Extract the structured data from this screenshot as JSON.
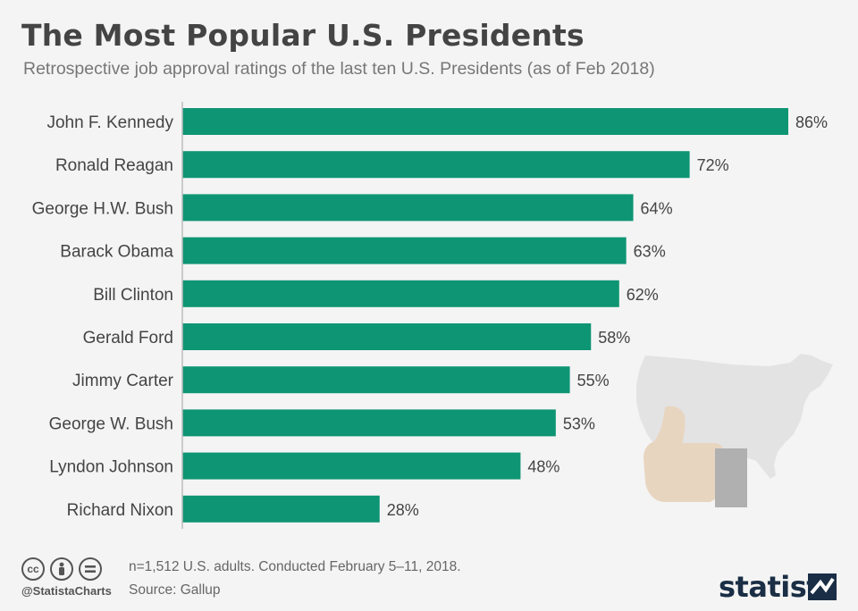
{
  "title": "The Most Popular U.S. Presidents",
  "subtitle": "Retrospective job approval ratings of the last ten U.S. Presidents (as of Feb 2018)",
  "colors": {
    "bar": "#0e9574",
    "text": "#444444",
    "axis": "#bbbbbb"
  },
  "chart_data": {
    "type": "bar",
    "orientation": "horizontal",
    "categories": [
      "John F. Kennedy",
      "Ronald Reagan",
      "George H.W. Bush",
      "Barack Obama",
      "Bill Clinton",
      "Gerald Ford",
      "Jimmy Carter",
      "George W. Bush",
      "Lyndon Johnson",
      "Richard Nixon"
    ],
    "values": [
      86,
      72,
      64,
      63,
      62,
      58,
      55,
      53,
      48,
      28
    ],
    "value_labels": [
      "86%",
      "72%",
      "64%",
      "63%",
      "62%",
      "58%",
      "55%",
      "53%",
      "48%",
      "28%"
    ],
    "xlim": [
      0,
      86
    ],
    "grid": false
  },
  "footer": {
    "cc_icons": [
      "cc-icon",
      "by-icon",
      "nd-icon"
    ],
    "handle": "@StatistaCharts",
    "note": "n=1,512 U.S. adults. Conducted February 5–11, 2018.",
    "source": "Source: Gallup",
    "brand": "statista"
  }
}
